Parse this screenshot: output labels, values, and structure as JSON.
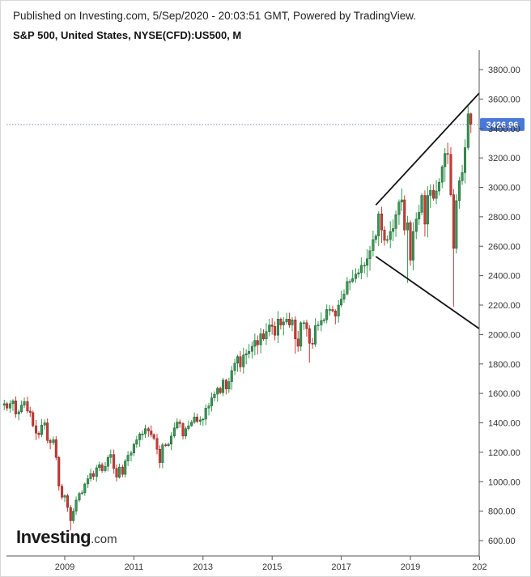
{
  "header": {
    "published": "Published on Investing.com, 5/Sep/2020 - 20:03:51 GMT, Powered by TradingView.",
    "symbol": "S&P 500, United States, NYSE(CFD):US500, M"
  },
  "logo": {
    "main": "Investing",
    "suffix": ".com"
  },
  "chart_data": {
    "type": "candlestick",
    "interval": "monthly",
    "y_axis": {
      "position": "right",
      "ticks": [
        "600.00",
        "800.00",
        "1000.00",
        "1200.00",
        "1400.00",
        "1600.00",
        "1800.00",
        "2000.00",
        "2200.00",
        "2400.00",
        "2600.00",
        "2800.00",
        "3000.00",
        "3200.00",
        "3400.00",
        "3600.00",
        "3800.00"
      ],
      "range": [
        550,
        3880
      ]
    },
    "x_axis": {
      "ticks": [
        "2009",
        "2011",
        "2013",
        "2015",
        "2017",
        "2019",
        "202"
      ],
      "range_years": [
        2007.25,
        2020.9
      ]
    },
    "last_price": {
      "value": 3426.96,
      "label": "3426.96",
      "color": "#4a78d6"
    },
    "colors": {
      "up": "#2e9e4e",
      "down": "#d9342b"
    },
    "trend_lines": [
      {
        "name": "upper-resistance",
        "from": [
          2018.0,
          2880
        ],
        "to": [
          2021.0,
          3640
        ]
      },
      {
        "name": "lower-support",
        "from": [
          2018.0,
          2530
        ],
        "to": [
          2021.0,
          2040
        ]
      }
    ],
    "closes": [
      [
        2007.25,
        1530
      ],
      [
        2007.33,
        1500
      ],
      [
        2007.42,
        1530
      ],
      [
        2007.5,
        1550
      ],
      [
        2007.58,
        1460
      ],
      [
        2007.67,
        1475
      ],
      [
        2007.75,
        1520
      ],
      [
        2007.83,
        1545
      ],
      [
        2007.92,
        1480
      ],
      [
        2008.0,
        1470
      ],
      [
        2008.08,
        1380
      ],
      [
        2008.17,
        1330
      ],
      [
        2008.25,
        1320
      ],
      [
        2008.33,
        1385
      ],
      [
        2008.42,
        1400
      ],
      [
        2008.5,
        1280
      ],
      [
        2008.58,
        1265
      ],
      [
        2008.67,
        1285
      ],
      [
        2008.75,
        1165
      ],
      [
        2008.83,
        970
      ],
      [
        2008.92,
        895
      ],
      [
        2009.0,
        905
      ],
      [
        2009.08,
        825
      ],
      [
        2009.17,
        735
      ],
      [
        2009.25,
        800
      ],
      [
        2009.33,
        875
      ],
      [
        2009.42,
        920
      ],
      [
        2009.5,
        925
      ],
      [
        2009.58,
        985
      ],
      [
        2009.67,
        1020
      ],
      [
        2009.75,
        1055
      ],
      [
        2009.83,
        1035
      ],
      [
        2009.92,
        1095
      ],
      [
        2010.0,
        1115
      ],
      [
        2010.08,
        1075
      ],
      [
        2010.17,
        1105
      ],
      [
        2010.25,
        1165
      ],
      [
        2010.33,
        1185
      ],
      [
        2010.42,
        1090
      ],
      [
        2010.5,
        1030
      ],
      [
        2010.58,
        1100
      ],
      [
        2010.67,
        1050
      ],
      [
        2010.75,
        1140
      ],
      [
        2010.83,
        1180
      ],
      [
        2010.92,
        1195
      ],
      [
        2011.0,
        1255
      ],
      [
        2011.08,
        1285
      ],
      [
        2011.17,
        1325
      ],
      [
        2011.25,
        1325
      ],
      [
        2011.33,
        1360
      ],
      [
        2011.42,
        1345
      ],
      [
        2011.5,
        1320
      ],
      [
        2011.58,
        1295
      ],
      [
        2011.67,
        1220
      ],
      [
        2011.75,
        1130
      ],
      [
        2011.83,
        1250
      ],
      [
        2011.92,
        1245
      ],
      [
        2012.0,
        1255
      ],
      [
        2012.08,
        1310
      ],
      [
        2012.17,
        1365
      ],
      [
        2012.25,
        1405
      ],
      [
        2012.33,
        1395
      ],
      [
        2012.42,
        1310
      ],
      [
        2012.5,
        1360
      ],
      [
        2012.58,
        1380
      ],
      [
        2012.67,
        1405
      ],
      [
        2012.75,
        1440
      ],
      [
        2012.83,
        1410
      ],
      [
        2012.92,
        1420
      ],
      [
        2013.0,
        1425
      ],
      [
        2013.08,
        1500
      ],
      [
        2013.17,
        1515
      ],
      [
        2013.25,
        1570
      ],
      [
        2013.33,
        1595
      ],
      [
        2013.42,
        1635
      ],
      [
        2013.5,
        1605
      ],
      [
        2013.58,
        1690
      ],
      [
        2013.67,
        1630
      ],
      [
        2013.75,
        1680
      ],
      [
        2013.83,
        1755
      ],
      [
        2013.92,
        1805
      ],
      [
        2014.0,
        1850
      ],
      [
        2014.08,
        1780
      ],
      [
        2014.17,
        1860
      ],
      [
        2014.25,
        1870
      ],
      [
        2014.33,
        1885
      ],
      [
        2014.42,
        1920
      ],
      [
        2014.5,
        1960
      ],
      [
        2014.58,
        1930
      ],
      [
        2014.67,
        2005
      ],
      [
        2014.75,
        1970
      ],
      [
        2014.83,
        2020
      ],
      [
        2014.92,
        2065
      ],
      [
        2015.0,
        2055
      ],
      [
        2015.08,
        1995
      ],
      [
        2015.17,
        2105
      ],
      [
        2015.25,
        2065
      ],
      [
        2015.33,
        2085
      ],
      [
        2015.42,
        2105
      ],
      [
        2015.5,
        2065
      ],
      [
        2015.58,
        2100
      ],
      [
        2015.67,
        1970
      ],
      [
        2015.75,
        1920
      ],
      [
        2015.83,
        2080
      ],
      [
        2015.92,
        2080
      ],
      [
        2016.0,
        2040
      ],
      [
        2016.08,
        1940
      ],
      [
        2016.17,
        1935
      ],
      [
        2016.25,
        2060
      ],
      [
        2016.33,
        2065
      ],
      [
        2016.42,
        2095
      ],
      [
        2016.5,
        2100
      ],
      [
        2016.58,
        2170
      ],
      [
        2016.67,
        2170
      ],
      [
        2016.75,
        2160
      ],
      [
        2016.83,
        2125
      ],
      [
        2016.92,
        2200
      ],
      [
        2017.0,
        2240
      ],
      [
        2017.08,
        2275
      ],
      [
        2017.17,
        2360
      ],
      [
        2017.25,
        2360
      ],
      [
        2017.33,
        2380
      ],
      [
        2017.42,
        2410
      ],
      [
        2017.5,
        2420
      ],
      [
        2017.58,
        2470
      ],
      [
        2017.67,
        2470
      ],
      [
        2017.75,
        2515
      ],
      [
        2017.83,
        2570
      ],
      [
        2017.92,
        2645
      ],
      [
        2018.0,
        2670
      ],
      [
        2018.08,
        2820
      ],
      [
        2018.17,
        2710
      ],
      [
        2018.25,
        2640
      ],
      [
        2018.33,
        2645
      ],
      [
        2018.42,
        2700
      ],
      [
        2018.5,
        2720
      ],
      [
        2018.58,
        2815
      ],
      [
        2018.67,
        2900
      ],
      [
        2018.75,
        2915
      ],
      [
        2018.83,
        2710
      ],
      [
        2018.92,
        2760
      ],
      [
        2019.0,
        2505
      ],
      [
        2019.08,
        2700
      ],
      [
        2019.17,
        2785
      ],
      [
        2019.25,
        2830
      ],
      [
        2019.33,
        2945
      ],
      [
        2019.42,
        2750
      ],
      [
        2019.5,
        2945
      ],
      [
        2019.58,
        2980
      ],
      [
        2019.67,
        2925
      ],
      [
        2019.75,
        2975
      ],
      [
        2019.83,
        3035
      ],
      [
        2019.92,
        3140
      ],
      [
        2020.0,
        3230
      ],
      [
        2020.08,
        3225
      ],
      [
        2020.17,
        2950
      ],
      [
        2020.25,
        2585
      ],
      [
        2020.33,
        2910
      ],
      [
        2020.42,
        3045
      ],
      [
        2020.5,
        3100
      ],
      [
        2020.58,
        3270
      ],
      [
        2020.67,
        3500
      ],
      [
        2020.75,
        3427
      ]
    ]
  }
}
